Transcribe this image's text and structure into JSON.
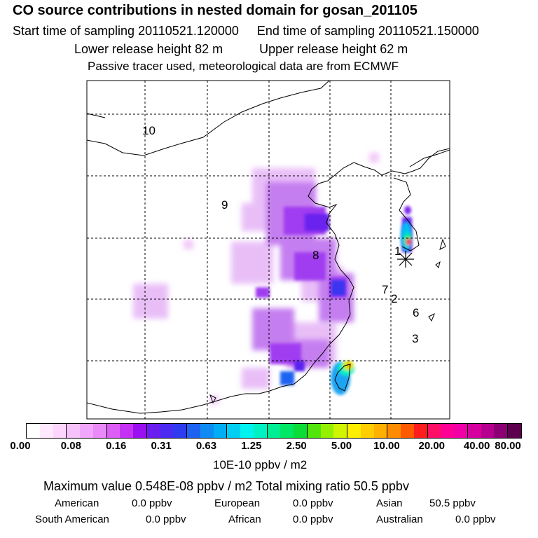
{
  "header": {
    "title": "CO  source contributions in nested domain for gosan_201105",
    "start_time": "Start time of sampling 20110521.120000",
    "end_time": "End time of sampling 20110521.150000",
    "lower_height": "Lower release height   82 m",
    "upper_height": "Upper release height   62 m",
    "note": "Passive tracer used, meteorological data are from ECMWF"
  },
  "map": {
    "region_labels": [
      "10",
      "9",
      "8",
      "1",
      "7",
      "2",
      "6",
      "3"
    ],
    "receptor_marker": "asterisk"
  },
  "colorbar": {
    "colors": [
      "#ffffff",
      "#ffe9ff",
      "#fdd5fd",
      "#f7c2f9",
      "#f0a6fb",
      "#e98af8",
      "#dc5ef7",
      "#c632f3",
      "#9a10f1",
      "#6a1ef0",
      "#4b2bf1",
      "#2e3bf0",
      "#1e62f2",
      "#0f8cf4",
      "#00aef6",
      "#00cff4",
      "#00f3ee",
      "#00f2c2",
      "#00ee93",
      "#00e766",
      "#0bdc36",
      "#52e50c",
      "#94f000",
      "#cff500",
      "#ffee00",
      "#ffcd00",
      "#ffb000",
      "#ff8c00",
      "#ff5a00",
      "#ff1c1c",
      "#ff0e66",
      "#ff0096",
      "#f100a8",
      "#d6009f",
      "#b5008f",
      "#8c0074",
      "#5d004e"
    ],
    "ticks": [
      "0.00",
      "0.08",
      "0.16",
      "0.31",
      "0.63",
      "1.25",
      "2.50",
      "5.00",
      "10.00",
      "20.00",
      "40.00",
      "80.00"
    ],
    "units": "10E-10 ppbv / m2"
  },
  "summary": {
    "max_line": "Maximum value  0.548E-08 ppbv / m2      Total mixing ratio       50.5 ppbv",
    "american_label": "American",
    "american_value": "0.0 ppbv",
    "european_label": "European",
    "european_value": "0.0 ppbv",
    "asian_label": "Asian",
    "asian_value": "50.5 ppbv",
    "south_american_label": "South American",
    "south_american_value": "0.0 ppbv",
    "african_label": "African",
    "african_value": "0.0 ppbv",
    "australian_label": "Australian",
    "australian_value": "0.0 ppbv"
  }
}
